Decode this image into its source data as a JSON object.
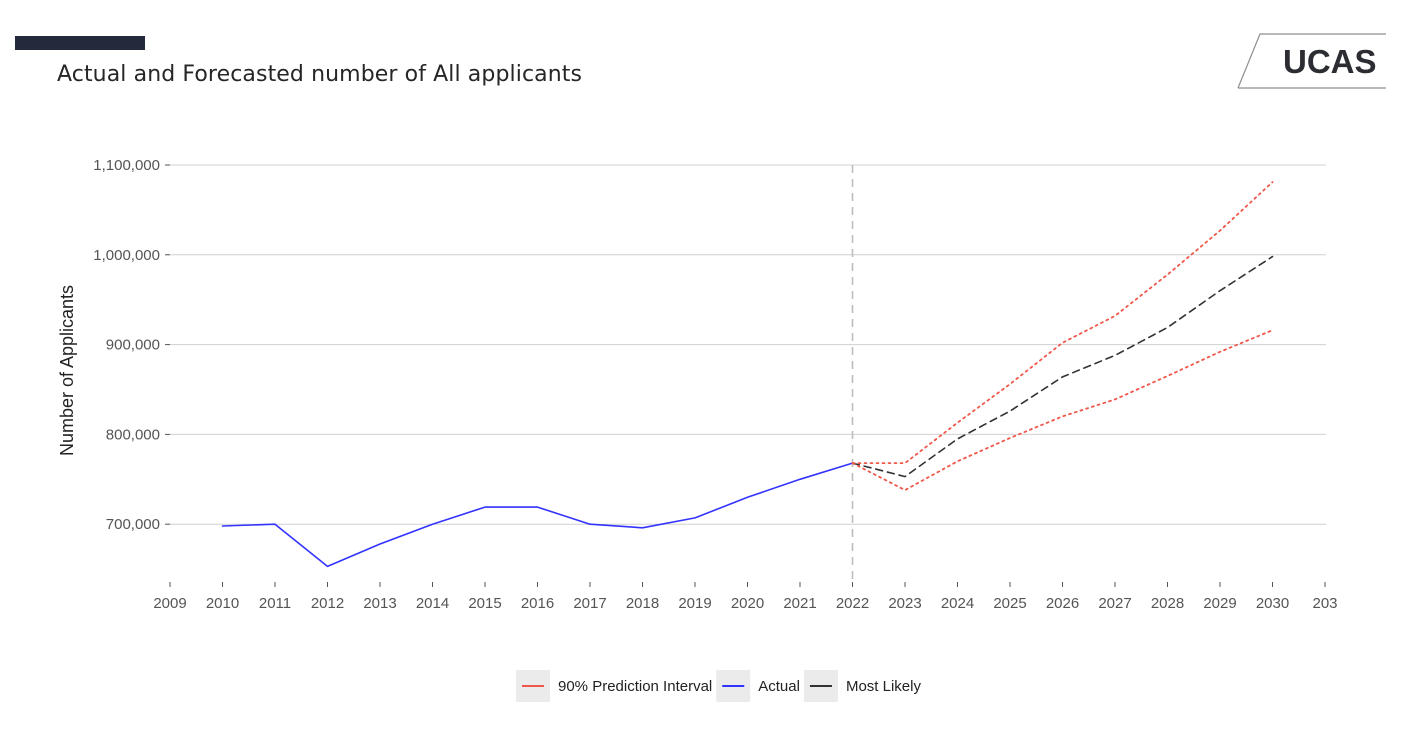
{
  "page": {
    "title": "Actual and Forecasted number of All applicants",
    "logo_text": "UCAS"
  },
  "colors": {
    "header_bar": "#232a3b",
    "actual": "#3333ff",
    "most_likely": "#333333",
    "prediction_interval": "#f0574a",
    "grid": "#d0d0d0",
    "divider": "#bdbdbd",
    "legend_key_bg": "#ebebeb"
  },
  "chart_data": {
    "type": "line",
    "title": "Actual and Forecasted number of All applicants",
    "xlabel": "",
    "ylabel": "Number of Applicants",
    "xlim": [
      2009,
      2031
    ],
    "ylim": [
      653000,
      1100000
    ],
    "x_ticks": [
      "2009",
      "2010",
      "2011",
      "2012",
      "2013",
      "2014",
      "2015",
      "2016",
      "2017",
      "2018",
      "2019",
      "2020",
      "2021",
      "2022",
      "2023",
      "2024",
      "2025",
      "2026",
      "2027",
      "2028",
      "2029",
      "2030",
      "203"
    ],
    "y_ticks": [
      {
        "value": 700000,
        "label": "700,000"
      },
      {
        "value": 800000,
        "label": "800,000"
      },
      {
        "value": 900000,
        "label": "900,000"
      },
      {
        "value": 1000000,
        "label": "1,000,000"
      },
      {
        "value": 1100000,
        "label": "1,100,000"
      }
    ],
    "grid": "horizontal",
    "vertical_marker_x": 2022,
    "legend_position": "bottom",
    "series": [
      {
        "name": "Actual",
        "style": "solid",
        "color": "#3333ff",
        "points": [
          [
            2010,
            698000
          ],
          [
            2011,
            700000
          ],
          [
            2012,
            653000
          ],
          [
            2013,
            678000
          ],
          [
            2014,
            700000
          ],
          [
            2015,
            719000
          ],
          [
            2016,
            719000
          ],
          [
            2017,
            700000
          ],
          [
            2018,
            696000
          ],
          [
            2019,
            707000
          ],
          [
            2020,
            730000
          ],
          [
            2021,
            750000
          ],
          [
            2022,
            768000
          ]
        ]
      },
      {
        "name": "Most Likely",
        "style": "dashed",
        "color": "#333333",
        "points": [
          [
            2022,
            768000
          ],
          [
            2023,
            753000
          ],
          [
            2024,
            795000
          ],
          [
            2025,
            826000
          ],
          [
            2026,
            864000
          ],
          [
            2027,
            888000
          ],
          [
            2028,
            919000
          ],
          [
            2029,
            960000
          ],
          [
            2030,
            998000
          ]
        ]
      },
      {
        "name": "90% Prediction Interval",
        "style": "dotted",
        "color": "#f0574a",
        "points": [
          [
            2022,
            768000
          ],
          [
            2023,
            768000
          ],
          [
            2024,
            813000
          ],
          [
            2025,
            856000
          ],
          [
            2026,
            902000
          ],
          [
            2027,
            932000
          ],
          [
            2028,
            978000
          ],
          [
            2029,
            1027000
          ],
          [
            2030,
            1081000
          ]
        ]
      },
      {
        "name": "90% Prediction Interval",
        "style": "dotted",
        "color": "#f0574a",
        "points": [
          [
            2022,
            768000
          ],
          [
            2023,
            738000
          ],
          [
            2024,
            770000
          ],
          [
            2025,
            796000
          ],
          [
            2026,
            820000
          ],
          [
            2027,
            839000
          ],
          [
            2028,
            865000
          ],
          [
            2029,
            892000
          ],
          [
            2030,
            916000
          ]
        ]
      }
    ],
    "legend": [
      {
        "label": "90% Prediction Interval",
        "color": "#f0574a"
      },
      {
        "label": "Actual",
        "color": "#3333ff"
      },
      {
        "label": "Most Likely",
        "color": "#333333"
      }
    ]
  }
}
